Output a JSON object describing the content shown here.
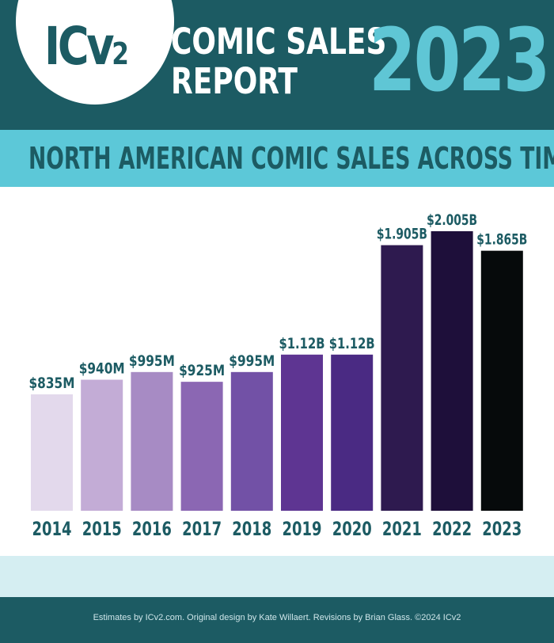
{
  "header": {
    "logo_text": "ICv",
    "logo_sub": "2",
    "report_title_line1": "COMIC SALES",
    "report_title_line2": "REPORT",
    "report_year": "2023"
  },
  "subtitle": {
    "part1": "NORTH AMERICAN COMIC SALES ",
    "part2": "ACROSS TIME"
  },
  "colors": {
    "header_bg": "#1c5b63",
    "accent_cyan": "#5cc8d8",
    "year_cyan": "#5fc6d5",
    "label_teal": "#1c5b63",
    "light_band": "#d5eef2"
  },
  "chart_data": {
    "type": "bar",
    "categories": [
      "2014",
      "2015",
      "2016",
      "2017",
      "2018",
      "2019",
      "2020",
      "2021",
      "2022",
      "2023"
    ],
    "values": [
      0.835,
      0.94,
      0.995,
      0.925,
      0.995,
      1.12,
      1.12,
      1.905,
      2.005,
      1.865
    ],
    "value_labels": [
      "$835M",
      "$940M",
      "$995M",
      "$925M",
      "$995M",
      "$1.12B",
      "$1.12B",
      "$1.905B",
      "$2.005B",
      "$1.865B"
    ],
    "bar_colors": [
      "#e3d9ec",
      "#c3acd6",
      "#a78bc4",
      "#8b67b3",
      "#7251a6",
      "#5e3592",
      "#4a2a83",
      "#2e1a4f",
      "#1e0f3a",
      "#060a0b"
    ],
    "unit": "USD billions",
    "ylim": [
      0,
      2.005
    ],
    "grid": false,
    "legend": "none"
  },
  "footer": {
    "credits": "Estimates by ICv2.com. Original design by Kate Willaert. Revisions by Brian Glass. ©2024 ICv2"
  }
}
